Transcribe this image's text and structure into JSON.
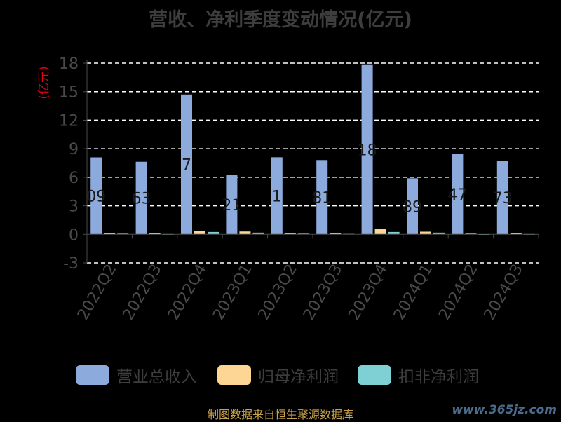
{
  "colors": {
    "revenue": "#8cabdc",
    "net_profit": "#fdd595",
    "deducted_profit": "#7fd0d5",
    "grid": "#ffffff",
    "axis_text": "#4a4a4a",
    "unit_text": "#e60012",
    "data_label": "#1a1a1a"
  },
  "legend": [
    {
      "key": "revenue",
      "label": "营业总收入"
    },
    {
      "key": "net_profit",
      "label": "归母净利润"
    },
    {
      "key": "deducted_profit",
      "label": "扣非净利润"
    }
  ],
  "source_note": "制图数据来自恒生聚源数据库",
  "watermark": "www.365jz.com",
  "chart_data": {
    "type": "bar",
    "title": "营收、净利季度变动情况(亿元)",
    "ylabel": "(亿元)",
    "xlabel": "",
    "ylim": [
      -3,
      18
    ],
    "yticks": [
      -3,
      0,
      3,
      6,
      9,
      12,
      15,
      18
    ],
    "grid": true,
    "legend_position": "bottom",
    "categories": [
      "2022Q2",
      "2022Q3",
      "2022Q4",
      "2023Q1",
      "2023Q2",
      "2023Q3",
      "2023Q4",
      "2024Q1",
      "2024Q2",
      "2024Q3"
    ],
    "series": [
      {
        "name": "营业总收入",
        "values": [
          8.09,
          7.63,
          14.7,
          6.21,
          8.1,
          7.81,
          17.8,
          5.89,
          8.47,
          7.73
        ],
        "labels": [
          "09",
          "63",
          "7",
          "21",
          "1",
          "81",
          "18",
          "89",
          "47",
          "73"
        ]
      },
      {
        "name": "归母净利润",
        "values": [
          0.1,
          0.12,
          0.35,
          0.3,
          0.12,
          0.1,
          0.6,
          0.28,
          0.08,
          0.1
        ]
      },
      {
        "name": "扣非净利润",
        "values": [
          0.08,
          0.03,
          0.25,
          0.18,
          0.08,
          0.05,
          0.25,
          0.18,
          0.02,
          0.03
        ]
      }
    ]
  }
}
